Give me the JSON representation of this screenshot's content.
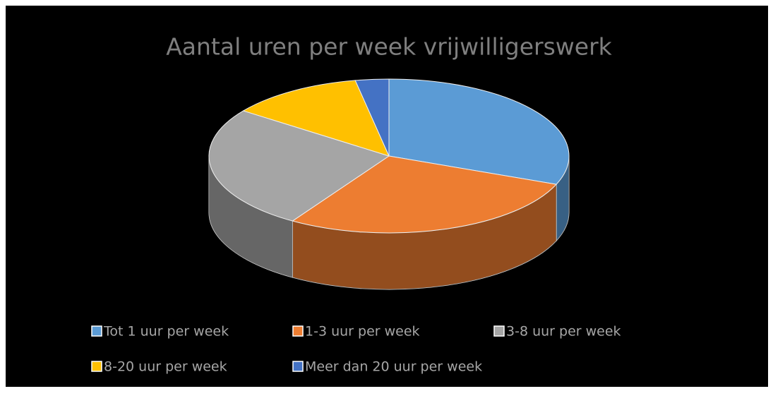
{
  "chart_data": {
    "type": "pie3d",
    "title": "Aantal uren per week vrijwilligerswerk",
    "categories": [
      "Tot 1 uur per week",
      "1-3 uur per week",
      "3-8 uur per week",
      "8-20 uur per week",
      "Meer dan 20 uur per week"
    ],
    "values": [
      31,
      28,
      26,
      12,
      3
    ],
    "colors": [
      "#5b9bd5",
      "#ed7d31",
      "#a5a5a5",
      "#ffc000",
      "#4472c4"
    ],
    "legend": "bottom"
  }
}
